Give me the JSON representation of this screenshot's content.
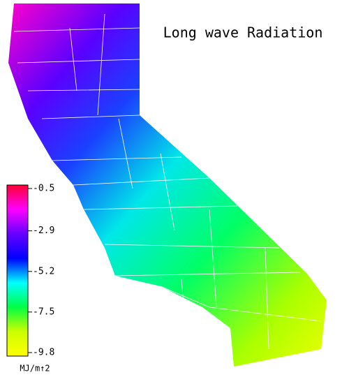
{
  "title": "Long wave Radiation",
  "legend": {
    "range": [
      -0.5,
      -9.8
    ],
    "ticks": [
      -0.5,
      -2.9,
      -5.2,
      -7.5,
      -9.8
    ],
    "unit": "MJ/m↑2",
    "colors": [
      "#ff0033",
      "#ff00ff",
      "#6600ff",
      "#0000ff",
      "#00ffff",
      "#00ff44",
      "#ccff00",
      "#ffff00"
    ]
  }
}
